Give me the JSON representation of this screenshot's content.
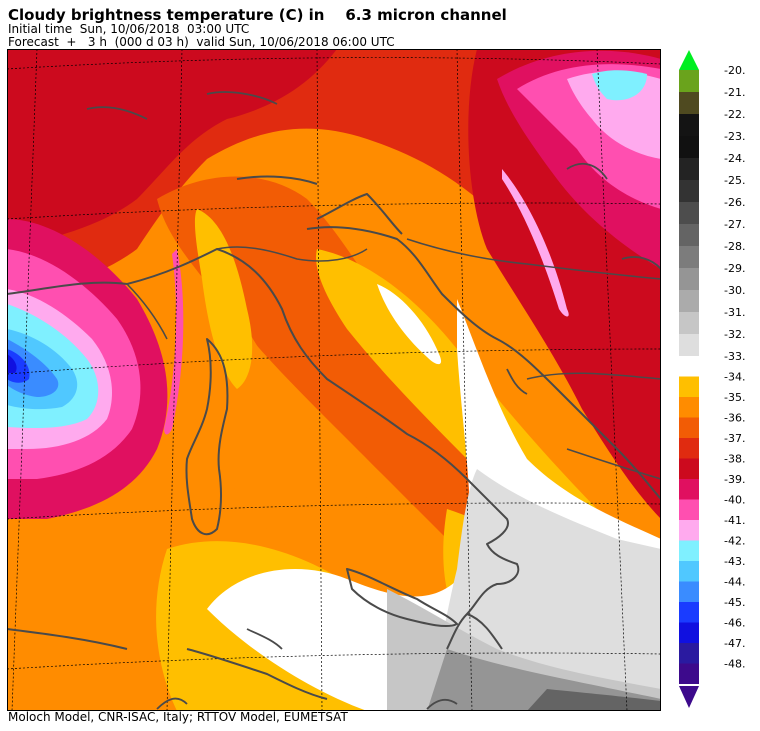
{
  "header": {
    "title_left": "Cloudy brightness temperature (C) in",
    "title_right": "6.3 micron channel",
    "initial_time": "Initial time  Sun, 10/06/2018  03:00 UTC",
    "forecast": "Forecast  +   3 h  (000 d 03 h)  valid Sun, 10/06/2018 06:00 UTC"
  },
  "footer": {
    "credit": "Moloch Model, CNR-ISAC, Italy; RTTOV Model, EUMETSAT"
  },
  "legend": {
    "upper": [
      {
        "label": "-20.",
        "color": "#6aa31c"
      },
      {
        "label": "-21.",
        "color": "#4f4a20"
      },
      {
        "label": "-22.",
        "color": "#141414"
      },
      {
        "label": "-23.",
        "color": "#111111"
      },
      {
        "label": "-24.",
        "color": "#232323"
      },
      {
        "label": "-25.",
        "color": "#333333"
      },
      {
        "label": "-26.",
        "color": "#4d4d4d"
      },
      {
        "label": "-27.",
        "color": "#646464"
      },
      {
        "label": "-28.",
        "color": "#7c7c7c"
      },
      {
        "label": "-29.",
        "color": "#959595"
      },
      {
        "label": "-30.",
        "color": "#ababab"
      },
      {
        "label": "-31.",
        "color": "#c6c6c6"
      },
      {
        "label": "-32.",
        "color": "#dedede"
      }
    ],
    "lower": [
      {
        "label": "-33.",
        "color": "#ffffff"
      },
      {
        "label": "-34.",
        "color": "#ffbf00"
      },
      {
        "label": "-35.",
        "color": "#ff8c00"
      },
      {
        "label": "-36.",
        "color": "#f25c05"
      },
      {
        "label": "-37.",
        "color": "#e02b10"
      },
      {
        "label": "-38.",
        "color": "#cc0a1e"
      },
      {
        "label": "-39.",
        "color": "#e01060"
      },
      {
        "label": "-40.",
        "color": "#ff4fb0"
      },
      {
        "label": "-41.",
        "color": "#ffaaee"
      },
      {
        "label": "-42.",
        "color": "#7ff0ff"
      },
      {
        "label": "-43.",
        "color": "#50c8ff"
      },
      {
        "label": "-44.",
        "color": "#3a8cff"
      },
      {
        "label": "-45.",
        "color": "#1a3cff"
      },
      {
        "label": "-46.",
        "color": "#1010e0"
      },
      {
        "label": "-47.",
        "color": "#2a1aa0"
      },
      {
        "label": "-48.",
        "color": "#3d0a8c"
      }
    ],
    "arrow_top_color": "#00ee22",
    "arrow_bottom_color": "#3d0a8c"
  }
}
